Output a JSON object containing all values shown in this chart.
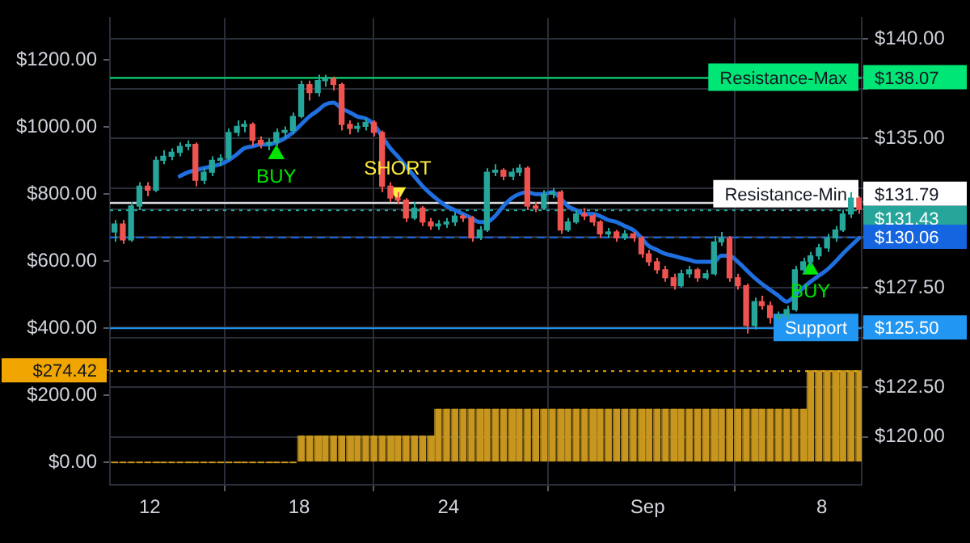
{
  "chart_data": {
    "type": "candlestick",
    "x": [
      "--08-10T14:00",
      "--08-10T22:00",
      "--08-11T06:00",
      "--08-11T14:00",
      "--08-11T22:00",
      "--08-12T06:00",
      "--08-12T13:00",
      "--08-12T21:00",
      "--08-13T05:00",
      "--08-13T13:00",
      "--08-13T20:00",
      "--08-14T04:00",
      "--08-14T12:00",
      "--08-14T20:00",
      "--08-15T04:00",
      "--08-15T12:00",
      "--08-15T19:00",
      "--08-16T03:00",
      "--08-16T11:00",
      "--08-16T19:00",
      "--08-17T02:00",
      "--08-17T10:00",
      "--08-17T18:00",
      "--08-18T02:00",
      "--08-18T10:00",
      "--08-18T18:00",
      "--08-19T01:00",
      "--08-19T09:00",
      "--08-19T17:00",
      "--08-20T01:00",
      "--08-20T08:00",
      "--08-20T16:00",
      "--08-21T00:00",
      "--08-21T08:00",
      "--08-21T16:00",
      "--08-21T23:00",
      "--08-22T07:00",
      "--08-22T15:00",
      "--08-22T23:00",
      "--08-23T07:00",
      "--08-23T14:00",
      "--08-23T22:00",
      "--08-24T06:00",
      "--08-24T14:00",
      "--08-24T22:00",
      "--08-25T06:00",
      "--08-25T13:00",
      "--08-25T21:00",
      "--08-26T05:00",
      "--08-26T13:00",
      "--08-26T20:00",
      "--08-27T04:00",
      "--08-27T12:00",
      "--08-27T20:00",
      "--08-28T04:00",
      "--08-28T12:00",
      "--08-28T19:00",
      "--08-29T03:00",
      "--08-29T11:00",
      "--08-29T19:00",
      "--08-30T02:00",
      "--08-30T10:00",
      "--08-30T18:00",
      "--08-31T02:00",
      "--08-31T10:00",
      "--08-31T18:00",
      "--09-01T01:00",
      "--09-01T09:00",
      "--09-01T17:00",
      "--09-02T01:00",
      "--09-02T08:00",
      "--09-02T16:00",
      "--09-03T00:00",
      "--09-03T08:00",
      "--09-03T16:00",
      "--09-03T23:00",
      "--09-04T07:00",
      "--09-04T15:00",
      "--09-04T23:00",
      "--09-05T07:00",
      "--09-05T14:00",
      "--09-05T22:00",
      "--09-06T06:00",
      "--09-06T14:00",
      "--09-06T22:00",
      "--09-07T06:00",
      "--09-07T13:00",
      "--09-07T21:00",
      "--09-08T05:00",
      "--09-08T13:00",
      "--09-08T20:00",
      "--09-09T04:00",
      "--09-09T12:00"
    ],
    "xlim": [
      "--08-10T09:36",
      "--09-09T14:24"
    ],
    "xticks": [
      {
        "value": "--08-12",
        "label": "12"
      },
      {
        "value": "--08-18",
        "label": "18"
      },
      {
        "value": "--08-24",
        "label": "24"
      },
      {
        "value": "--09-01",
        "label": "Sep"
      },
      {
        "value": "--09-08",
        "label": "8"
      }
    ],
    "ylim": [
      -67,
      1324
    ],
    "yticks": [
      {
        "value": 0,
        "label": "$0.00"
      },
      {
        "value": 200,
        "label": "$200.00"
      },
      {
        "value": 274.42,
        "label": "$274.42"
      },
      {
        "value": 400,
        "label": "$400.00"
      },
      {
        "value": 600,
        "label": "$600.00"
      },
      {
        "value": 800,
        "label": "$800.00"
      },
      {
        "value": 1000,
        "label": "$1000.00"
      },
      {
        "value": 1200,
        "label": "$1200.00"
      }
    ],
    "y2lim": [
      117.6,
      141.04
    ],
    "y2ticks": [
      {
        "value": 120,
        "label": "$120.00"
      },
      {
        "value": 122.5,
        "label": "$122.50"
      },
      {
        "value": 125,
        "label": null
      },
      {
        "value": 125.5,
        "label": "$125.50"
      },
      {
        "value": 127.5,
        "label": "$127.50"
      },
      {
        "value": 130,
        "label": null
      },
      {
        "value": 130.06,
        "label": "$130.06"
      },
      {
        "value": 131.43,
        "label": "$131.43"
      },
      {
        "value": 131.79,
        "label": "$131.79"
      },
      {
        "value": 132.5,
        "label": null
      },
      {
        "value": 135,
        "label": "$135.00"
      },
      {
        "value": 137.5,
        "label": null
      },
      {
        "value": 138.07,
        "label": "$138.07"
      },
      {
        "value": 140,
        "label": "$140.00"
      }
    ],
    "grid": true,
    "series": [
      {
        "axis": "y2",
        "colors": [
          "#26a69a",
          "#ef5350",
          "#26a69a",
          "#26a69a",
          "#ef5350",
          "#26a69a",
          "#26a69a",
          "#26a69a",
          "#26a69a",
          "#26a69a",
          "#ef5350",
          "#26a69a",
          "#26a69a",
          "#26a69a",
          "#26a69a",
          "#26a69a",
          "#26a69a",
          "#ef5350",
          "#ef5350",
          "#26a69a",
          "#26a69a",
          "#26a69a",
          "#26a69a",
          "#26a69a",
          "#ef5350",
          "#26a69a",
          "#26a69a",
          "#ef5350",
          "#ef5350",
          "#ef5350",
          "#26a69a",
          "#26a69a",
          "#ef5350",
          "#ef5350",
          "#ef5350",
          "#ef5350",
          "#ef5350",
          "#26a69a",
          "#ef5350",
          "#ef5350",
          "#26a69a",
          "#26a69a",
          "#26a69a",
          "#ef5350",
          "#ef5350",
          "#26a69a",
          "#26a69a",
          "#26a69a",
          "#ef5350",
          "#26a69a",
          "#26a69a",
          "#ef5350",
          "#ef5350",
          "#26a69a",
          "#26a69a",
          "#ef5350",
          "#26a69a",
          "#26a69a",
          "#ef5350",
          "#ef5350",
          "#ef5350",
          "#26a69a",
          "#ef5350",
          "#26a69a",
          "#ef5350",
          "#ef5350",
          "#ef5350",
          "#ef5350",
          "#ef5350",
          "#ef5350",
          "#26a69a",
          "#26a69a",
          "#ef5350",
          "#26a69a",
          "#26a69a",
          "#26a69a",
          "#ef5350",
          "#ef5350",
          "#ef5350",
          "#26a69a",
          "#ef5350",
          "#ef5350",
          "#26a69a",
          "#26a69a",
          "#26a69a",
          "#26a69a",
          "#26a69a",
          "#26a69a",
          "#26a69a",
          "#26a69a",
          "#26a69a",
          "#26a69a",
          "#ef5350"
        ],
        "ohlc": [
          [
            130.3,
            130.9,
            129.8,
            130.7
          ],
          [
            130.7,
            130.9,
            129.7,
            129.9
          ],
          [
            129.9,
            131.8,
            129.8,
            131.6
          ],
          [
            131.6,
            132.8,
            131.4,
            132.6
          ],
          [
            132.6,
            132.8,
            132.1,
            132.4
          ],
          [
            132.4,
            134.1,
            132.3,
            133.9
          ],
          [
            133.9,
            134.4,
            133.7,
            134.1
          ],
          [
            134.1,
            134.5,
            133.9,
            134.3
          ],
          [
            134.3,
            134.8,
            134.1,
            134.6
          ],
          [
            134.6,
            134.9,
            134.4,
            134.7
          ],
          [
            134.7,
            134.8,
            132.6,
            132.9
          ],
          [
            132.9,
            133.5,
            132.7,
            133.3
          ],
          [
            133.3,
            134.1,
            133.1,
            133.9
          ],
          [
            133.9,
            134.2,
            133.6,
            134.0
          ],
          [
            134.0,
            135.5,
            133.9,
            135.3
          ],
          [
            135.3,
            135.9,
            135.1,
            135.6
          ],
          [
            135.6,
            135.9,
            135.3,
            135.7
          ],
          [
            135.7,
            135.8,
            134.6,
            134.9
          ],
          [
            134.9,
            135.1,
            134.5,
            134.7
          ],
          [
            134.7,
            135.0,
            134.4,
            134.8
          ],
          [
            134.8,
            135.5,
            134.6,
            135.3
          ],
          [
            135.3,
            135.6,
            135.0,
            135.4
          ],
          [
            135.4,
            136.3,
            135.2,
            136.1
          ],
          [
            136.1,
            137.9,
            136.0,
            137.7
          ],
          [
            137.7,
            137.9,
            136.9,
            137.3
          ],
          [
            137.3,
            138.2,
            137.1,
            137.9
          ],
          [
            137.9,
            138.2,
            137.6,
            138.0
          ],
          [
            138.0,
            138.1,
            137.4,
            137.7
          ],
          [
            137.7,
            137.8,
            135.4,
            135.7
          ],
          [
            135.7,
            135.9,
            135.2,
            135.5
          ],
          [
            135.5,
            135.8,
            135.3,
            135.6
          ],
          [
            135.6,
            136.0,
            135.4,
            135.8
          ],
          [
            135.8,
            135.9,
            135.1,
            135.3
          ],
          [
            135.3,
            135.4,
            132.3,
            132.6
          ],
          [
            132.6,
            132.8,
            131.8,
            132.0
          ],
          [
            132.0,
            132.3,
            131.7,
            131.9
          ],
          [
            131.9,
            132.0,
            130.8,
            131.0
          ],
          [
            131.0,
            131.8,
            130.9,
            131.5
          ],
          [
            131.5,
            131.6,
            130.6,
            130.8
          ],
          [
            130.8,
            131.0,
            130.4,
            130.6
          ],
          [
            130.6,
            130.9,
            130.4,
            130.7
          ],
          [
            130.7,
            131.0,
            130.5,
            130.8
          ],
          [
            130.8,
            131.3,
            130.6,
            131.1
          ],
          [
            131.1,
            131.2,
            130.8,
            131.0
          ],
          [
            131.0,
            131.1,
            129.8,
            130.0
          ],
          [
            130.0,
            130.6,
            129.9,
            130.4
          ],
          [
            130.4,
            133.5,
            130.3,
            133.3
          ],
          [
            133.3,
            133.7,
            133.1,
            133.4
          ],
          [
            133.4,
            133.5,
            132.9,
            133.1
          ],
          [
            133.1,
            133.5,
            132.9,
            133.3
          ],
          [
            133.3,
            133.7,
            133.1,
            133.5
          ],
          [
            133.5,
            133.6,
            131.4,
            131.6
          ],
          [
            131.6,
            131.8,
            131.3,
            131.5
          ],
          [
            131.5,
            132.4,
            131.4,
            132.2
          ],
          [
            132.2,
            132.5,
            132.0,
            132.3
          ],
          [
            132.3,
            132.4,
            130.2,
            130.4
          ],
          [
            130.4,
            131.0,
            130.3,
            130.8
          ],
          [
            130.8,
            131.4,
            130.7,
            131.2
          ],
          [
            131.2,
            131.5,
            130.9,
            131.1
          ],
          [
            131.1,
            131.2,
            130.6,
            130.8
          ],
          [
            130.8,
            130.9,
            130.0,
            130.2
          ],
          [
            130.2,
            130.5,
            130.0,
            130.3
          ],
          [
            130.3,
            130.4,
            129.8,
            130.0
          ],
          [
            130.0,
            130.4,
            129.9,
            130.2
          ],
          [
            130.2,
            130.3,
            129.8,
            130.0
          ],
          [
            130.0,
            130.1,
            129.0,
            129.2
          ],
          [
            129.2,
            129.4,
            128.6,
            128.8
          ],
          [
            128.8,
            129.0,
            128.2,
            128.4
          ],
          [
            128.4,
            128.6,
            127.8,
            128.0
          ],
          [
            128.0,
            128.2,
            127.4,
            127.6
          ],
          [
            127.6,
            128.4,
            127.5,
            128.2
          ],
          [
            128.2,
            128.6,
            128.0,
            128.4
          ],
          [
            128.4,
            128.5,
            127.8,
            128.0
          ],
          [
            128.0,
            128.4,
            127.9,
            128.2
          ],
          [
            128.2,
            130.1,
            128.1,
            129.8
          ],
          [
            129.8,
            130.3,
            129.6,
            130.0
          ],
          [
            130.0,
            130.1,
            127.8,
            128.0
          ],
          [
            128.0,
            128.2,
            127.4,
            127.6
          ],
          [
            127.6,
            127.7,
            125.2,
            125.6
          ],
          [
            125.6,
            127.0,
            125.4,
            126.8
          ],
          [
            126.8,
            127.1,
            126.4,
            126.6
          ],
          [
            126.6,
            126.8,
            125.7,
            126.0
          ],
          [
            126.0,
            126.3,
            125.8,
            126.1
          ],
          [
            126.1,
            126.6,
            125.9,
            126.4
          ],
          [
            126.4,
            128.6,
            126.3,
            128.4
          ],
          [
            128.4,
            129.0,
            128.2,
            128.8
          ],
          [
            128.8,
            129.3,
            128.6,
            129.1
          ],
          [
            129.1,
            129.7,
            128.9,
            129.5
          ],
          [
            129.5,
            130.2,
            129.3,
            130.0
          ],
          [
            130.0,
            130.6,
            129.8,
            130.4
          ],
          [
            130.4,
            131.4,
            130.3,
            131.2
          ],
          [
            131.2,
            132.3,
            131.0,
            132.0
          ],
          [
            132.0,
            132.1,
            131.2,
            131.43
          ]
        ]
      },
      {
        "type": "line",
        "axis": "y2",
        "color": "#1f6fe0",
        "values": [
          null,
          null,
          null,
          null,
          null,
          null,
          null,
          null,
          133.1,
          133.3,
          133.4,
          133.5,
          133.6,
          133.7,
          133.9,
          134.2,
          134.5,
          134.6,
          134.7,
          134.7,
          134.8,
          135.0,
          135.3,
          135.7,
          136.1,
          136.4,
          136.7,
          136.8,
          136.5,
          136.3,
          136.1,
          136.0,
          135.7,
          135.1,
          134.5,
          134.1,
          133.6,
          133.1,
          132.6,
          132.2,
          131.9,
          131.6,
          131.4,
          131.2,
          131.0,
          130.8,
          130.8,
          131.1,
          131.6,
          132.0,
          132.2,
          132.3,
          132.2,
          132.2,
          132.3,
          132.0,
          131.6,
          131.4,
          131.2,
          131.2,
          131.1,
          130.9,
          130.8,
          130.6,
          130.4,
          130.0,
          129.6,
          129.4,
          129.2,
          129.1,
          129.0,
          128.9,
          128.8,
          128.8,
          128.8,
          129.1,
          129.1,
          128.8,
          128.4,
          128.0,
          127.7,
          127.4,
          127.1,
          126.8,
          127.1,
          127.5,
          127.8,
          128.1,
          128.4,
          128.8,
          129.2,
          129.6,
          130.0
        ]
      },
      {
        "type": "scatter",
        "axis": "y2",
        "name": "BUY",
        "color": "#00e600",
        "marker": "triangle",
        "x": [
          "--08-17T02:00",
          "--09-07T13:00"
        ],
        "values": [
          134.2,
          128.4
        ]
      },
      {
        "type": "scatter",
        "axis": "y2",
        "name": "SHORT",
        "color": "#ffeb3b",
        "marker": "triangle",
        "x": [
          "--08-21T23:00"
        ],
        "values": [
          132.3
        ]
      },
      {
        "type": "bar",
        "axis": "y",
        "color": "#c8961e",
        "values": [
          0,
          0,
          0,
          0,
          0,
          0,
          0,
          0,
          0,
          0,
          0,
          0,
          0,
          0,
          0,
          0,
          0,
          0,
          0,
          0,
          0,
          0,
          0,
          80,
          80,
          80,
          80,
          80,
          80,
          80,
          80,
          80,
          80,
          80,
          80,
          80,
          80,
          80,
          80,
          80,
          160,
          160,
          160,
          160,
          160,
          160,
          160,
          160,
          160,
          160,
          160,
          160,
          160,
          160,
          160,
          160,
          160,
          160,
          160,
          160,
          160,
          160,
          160,
          160,
          160,
          160,
          160,
          160,
          160,
          160,
          160,
          160,
          160,
          160,
          160,
          160,
          160,
          160,
          160,
          160,
          160,
          160,
          160,
          160,
          160,
          160,
          274.42,
          274.42,
          274.42,
          274.42,
          274.42,
          274.42,
          274.42
        ]
      }
    ],
    "ref_lines": [
      {
        "axis": "y2",
        "value": 138.07,
        "label": "Resistance-Max",
        "color": "#00e676",
        "line_style": "solid"
      },
      {
        "axis": "y2",
        "value": 131.79,
        "label": "Resistance-Min",
        "color": "#ffffff",
        "line_style": "solid"
      },
      {
        "axis": "y2",
        "value": 131.43,
        "label": null,
        "color": "#26a69a",
        "line_style": "dotted"
      },
      {
        "axis": "y2",
        "value": 130.06,
        "label": null,
        "color": "#1565e0",
        "line_style": "dashed"
      },
      {
        "axis": "y2",
        "value": 125.5,
        "label": "Support",
        "color": "#2196f3",
        "line_style": "solid"
      },
      {
        "axis": "y",
        "value": 274.42,
        "label": null,
        "color": "#f0a500",
        "line_style": "dotted"
      }
    ]
  }
}
